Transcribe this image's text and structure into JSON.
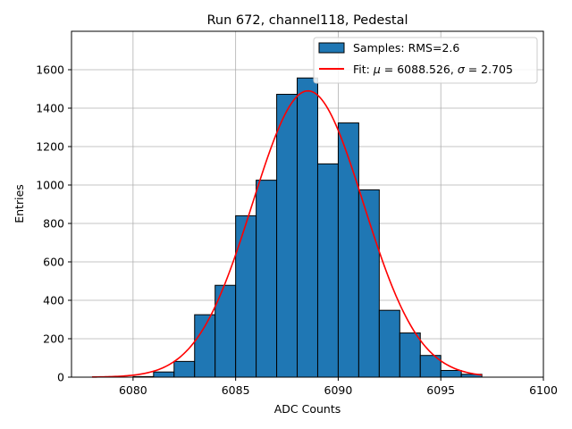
{
  "chart_data": {
    "type": "bar",
    "title": "Run 672, channel118, Pedestal",
    "xlabel": "ADC Counts",
    "ylabel": "Entries",
    "xlim": [
      6077,
      6100
    ],
    "ylim": [
      0,
      1800
    ],
    "xticks": [
      6080,
      6085,
      6090,
      6095,
      6100
    ],
    "yticks": [
      0,
      200,
      400,
      600,
      800,
      1000,
      1200,
      1400,
      1600
    ],
    "grid": true,
    "legend_position": "top-right",
    "bin_width": 1,
    "histogram": {
      "name": "Samples: RMS=2.6",
      "color": "#1f77b4",
      "edge_color": "#000000",
      "bins": [
        {
          "x0": 6080,
          "x1": 6081,
          "value": 3
        },
        {
          "x0": 6081,
          "x1": 6082,
          "value": 27
        },
        {
          "x0": 6082,
          "x1": 6083,
          "value": 82
        },
        {
          "x0": 6083,
          "x1": 6084,
          "value": 325
        },
        {
          "x0": 6084,
          "x1": 6085,
          "value": 478
        },
        {
          "x0": 6085,
          "x1": 6086,
          "value": 840
        },
        {
          "x0": 6086,
          "x1": 6087,
          "value": 1025
        },
        {
          "x0": 6087,
          "x1": 6088,
          "value": 1472
        },
        {
          "x0": 6088,
          "x1": 6089,
          "value": 1557
        },
        {
          "x0": 6089,
          "x1": 6090,
          "value": 1110
        },
        {
          "x0": 6090,
          "x1": 6091,
          "value": 1323
        },
        {
          "x0": 6091,
          "x1": 6092,
          "value": 975
        },
        {
          "x0": 6092,
          "x1": 6093,
          "value": 348
        },
        {
          "x0": 6093,
          "x1": 6094,
          "value": 230
        },
        {
          "x0": 6094,
          "x1": 6095,
          "value": 113
        },
        {
          "x0": 6095,
          "x1": 6096,
          "value": 35
        },
        {
          "x0": 6096,
          "x1": 6097,
          "value": 15
        }
      ]
    },
    "fit": {
      "legend_prefix": "Fit: ",
      "mu_symbol": "μ",
      "mu_text": " = 6088.526, ",
      "sigma_symbol": "σ",
      "sigma_text": " = 2.705",
      "color": "#ff0000",
      "mu": 6088.526,
      "sigma": 2.705,
      "amplitude": 1490,
      "x_range": [
        6078,
        6097
      ]
    }
  }
}
